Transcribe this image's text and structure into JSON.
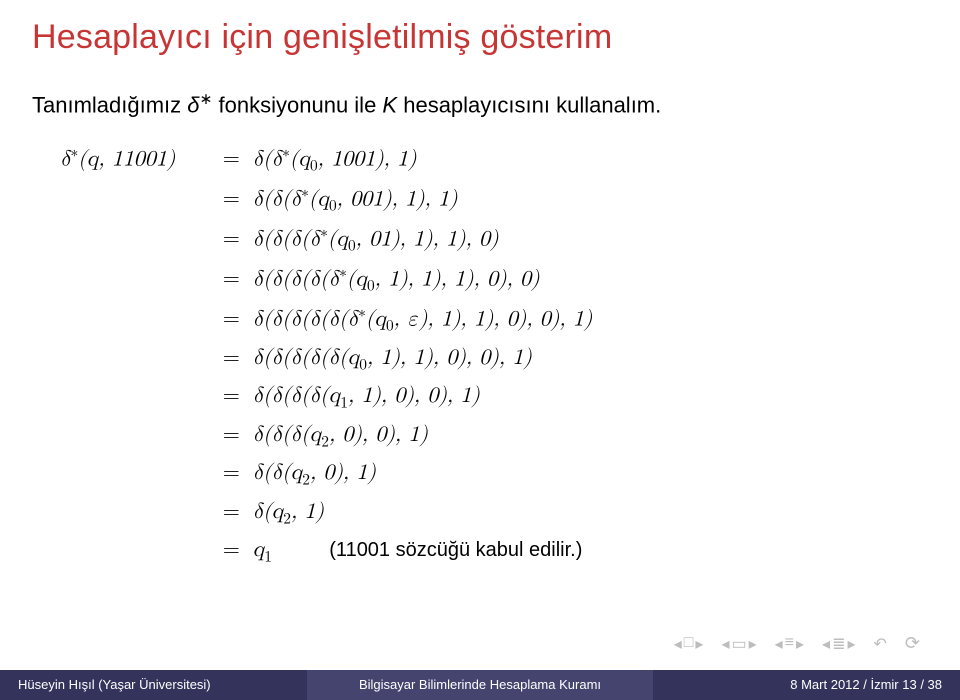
{
  "colors": {
    "title": "#c73535",
    "text": "#000000",
    "nav_icon": "#bdbdbd",
    "footer_seg1_bg": "#33335b",
    "footer_seg2_bg": "#44446f",
    "footer_seg3_bg": "#33335b",
    "footer_text": "#ffffff"
  },
  "title": "Hesaplayıcı için genişletilmiş gösterim",
  "subtitle_pre": "Tanımladığımız ",
  "subtitle_delta": "δ",
  "subtitle_star": "∗",
  "subtitle_post": " fonksiyonunu ile ",
  "subtitle_K": "K",
  "subtitle_post2": " hesaplayıcısını kullanalım.",
  "math": {
    "lhs": "δ∗(q, 11001)",
    "rows": [
      {
        "eq": "=",
        "rhs": "δ(δ∗(q₀, 1001), 1)"
      },
      {
        "eq": "=",
        "rhs": "δ(δ(δ∗(q₀, 001), 1), 1)"
      },
      {
        "eq": "=",
        "rhs": "δ(δ(δ(δ∗(q₀, 01), 1), 1), 0)"
      },
      {
        "eq": "=",
        "rhs": "δ(δ(δ(δ(δ∗(q₀, 1), 1), 1), 0), 0)"
      },
      {
        "eq": "=",
        "rhs": "δ(δ(δ(δ(δ(δ∗(q₀, ε), 1), 1), 0), 0), 1)"
      },
      {
        "eq": "=",
        "rhs": "δ(δ(δ(δ(δ(q₀, 1), 1), 0), 0), 1)"
      },
      {
        "eq": "=",
        "rhs": "δ(δ(δ(δ(q₁, 1), 0), 0), 1)"
      },
      {
        "eq": "=",
        "rhs": "δ(δ(δ(q₂, 0), 0), 1)"
      },
      {
        "eq": "=",
        "rhs": "δ(δ(q₂, 0), 1)"
      },
      {
        "eq": "=",
        "rhs": "δ(q₂, 1)"
      },
      {
        "eq": "=",
        "rhs": "q₁",
        "tag": "(11001 sözcüğü kabul edilir.)"
      }
    ]
  },
  "footer": {
    "left": "Hüseyin Hışıl (Yaşar Üniversitesi)",
    "center": "Bilgisayar Bilimlerinde Hesaplama Kuramı",
    "right": "8 Mart 2012 / İzmir    13 / 38"
  }
}
